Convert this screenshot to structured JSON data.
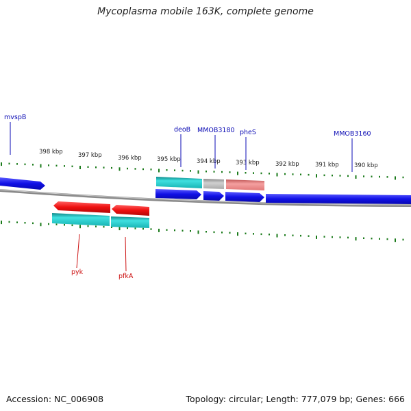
{
  "title": "Mycoplasma mobile 163K, complete genome",
  "footer": {
    "accession": "Accession: NC_006908",
    "summary": "Topology: circular; Length: 777,079 bp; Genes: 666"
  },
  "colors": {
    "forward_gene": "#1010e6",
    "reverse_gene": "#ee1010",
    "cds_teal": "#20c4c4",
    "gray_feature": "#bbbbbb",
    "pink_feature": "#ee8080",
    "tick": "#1a7a1a",
    "backbone": "#8a8a8a",
    "forward_label": "#0a0ab4",
    "reverse_label": "#cc1010"
  },
  "scale_labels": [
    "398 kbp",
    "397 kbp",
    "396 kbp",
    "395 kbp",
    "394 kbp",
    "393 kbp",
    "392 kbp",
    "391 kbp",
    "390 kbp"
  ],
  "forward_gene_labels": [
    "mvspB",
    "deoB",
    "MMOB3180",
    "pheS",
    "MMOB3160"
  ],
  "reverse_gene_labels": [
    "pyk",
    "pfkA"
  ]
}
